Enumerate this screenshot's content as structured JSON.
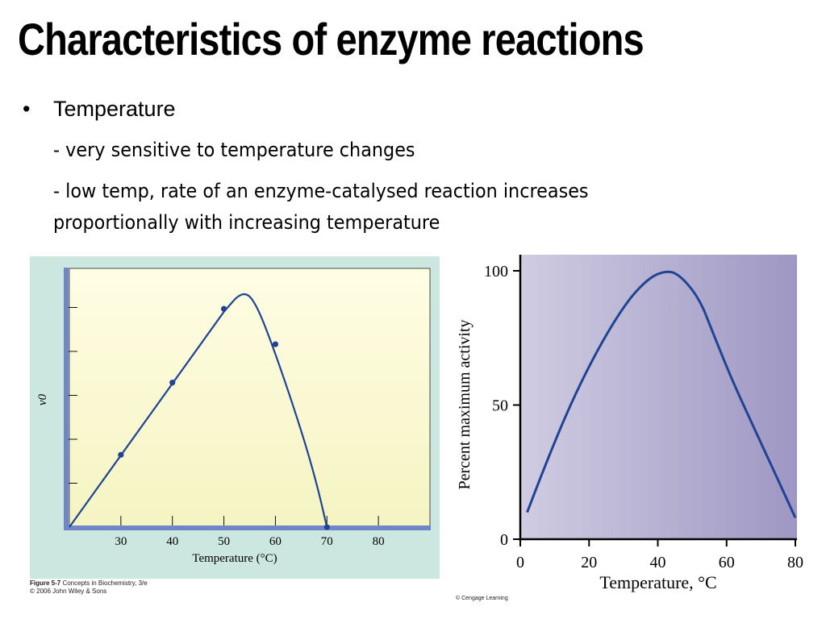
{
  "slide": {
    "title": "Characteristics of enzyme reactions",
    "bullet": "•",
    "heading": "Temperature",
    "line1": "- very sensitive to temperature changes",
    "line2": "- low temp, rate of an enzyme-catalysed reaction increases",
    "line3": "proportionally with increasing temperature"
  },
  "credits": {
    "left_line1_bold": "Figure 5-7",
    "left_line1_rest": " Concepts in Biochemistry, 3/e",
    "left_line2": "© 2006 John Wiley & Sons",
    "right": "© Cengage Learning"
  },
  "colors": {
    "curve": "#1f4494",
    "left_axis": "#6f86c8",
    "left_frame": "#cce6e0",
    "left_plot_top": "#fffde4",
    "left_plot_bottom": "#f5f4c2",
    "right_bg_left": "#d0cce2",
    "right_bg_right": "#9e97c3"
  },
  "chart_data": [
    {
      "type": "line",
      "xlabel": "Temperature (°C)",
      "ylabel": "v0",
      "x_ticks": [
        30,
        40,
        50,
        60,
        70,
        80
      ],
      "xlim": [
        20,
        90
      ],
      "y_labels_shown": false,
      "curve": {
        "x": [
          20,
          50,
          53.5,
          56,
          60,
          65,
          68,
          70
        ],
        "y": [
          0,
          0.73,
          0.8,
          0.77,
          0.59,
          0.33,
          0.15,
          0
        ]
      },
      "points": {
        "x": [
          30,
          40,
          50,
          60,
          70
        ],
        "y": [
          0.245,
          0.49,
          0.74,
          0.62,
          0
        ]
      }
    },
    {
      "type": "line",
      "xlabel": "Temperature, °C",
      "ylabel": "Percent maximum activity",
      "x_ticks": [
        0,
        20,
        40,
        60,
        80
      ],
      "y_ticks": [
        0,
        50,
        100
      ],
      "xlim": [
        0,
        80
      ],
      "ylim": [
        0,
        100
      ],
      "series": [
        {
          "x": [
            2,
            10,
            20,
            30,
            37,
            42,
            46,
            52,
            56,
            62,
            70,
            80
          ],
          "y": [
            10,
            37,
            65,
            87,
            97,
            100,
            99,
            90,
            77,
            58,
            36,
            8
          ]
        }
      ]
    }
  ]
}
